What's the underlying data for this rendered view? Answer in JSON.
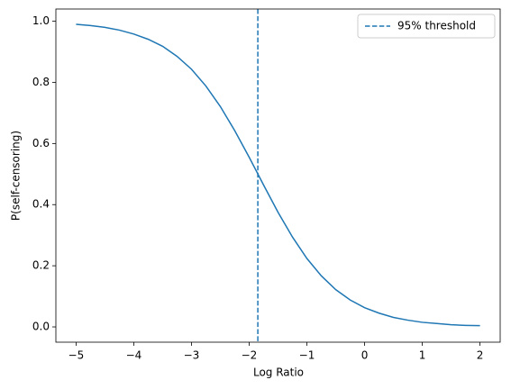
{
  "chart_data": {
    "type": "line",
    "xlabel": "Log Ratio",
    "ylabel": "P(self-censoring)",
    "x": [
      -5,
      -4.75,
      -4.5,
      -4.25,
      -4,
      -3.75,
      -3.5,
      -3.25,
      -3,
      -2.75,
      -2.5,
      -2.25,
      -2,
      -1.75,
      -1.5,
      -1.25,
      -1,
      -0.75,
      -0.5,
      -0.25,
      0,
      0.25,
      0.5,
      0.75,
      1,
      1.25,
      1.5,
      1.75,
      2
    ],
    "series": [
      {
        "color": "#1f77b4",
        "values": [
          0.99,
          0.986,
          0.98,
          0.971,
          0.958,
          0.941,
          0.918,
          0.885,
          0.843,
          0.788,
          0.721,
          0.642,
          0.555,
          0.464,
          0.375,
          0.294,
          0.224,
          0.167,
          0.122,
          0.088,
          0.063,
          0.045,
          0.031,
          0.022,
          0.015,
          0.011,
          0.007,
          0.005,
          0.004
        ]
      }
    ],
    "threshold": {
      "x": -1.85,
      "label": "95% threshold",
      "color": "#1f77b4"
    },
    "legend": "upper right",
    "grid": false,
    "xlim": [
      -5.35,
      2.35
    ],
    "ylim": [
      -0.05,
      1.04
    ],
    "xticks": [
      {
        "value": -5,
        "label": "−5"
      },
      {
        "value": -4,
        "label": "−4"
      },
      {
        "value": -3,
        "label": "−3"
      },
      {
        "value": -2,
        "label": "−2"
      },
      {
        "value": -1,
        "label": "−1"
      },
      0,
      1,
      2
    ],
    "yticks": [
      {
        "value": 0,
        "label": "0.0"
      },
      0.2,
      0.4,
      0.6,
      0.8,
      {
        "value": 1,
        "label": "1.0"
      }
    ]
  }
}
